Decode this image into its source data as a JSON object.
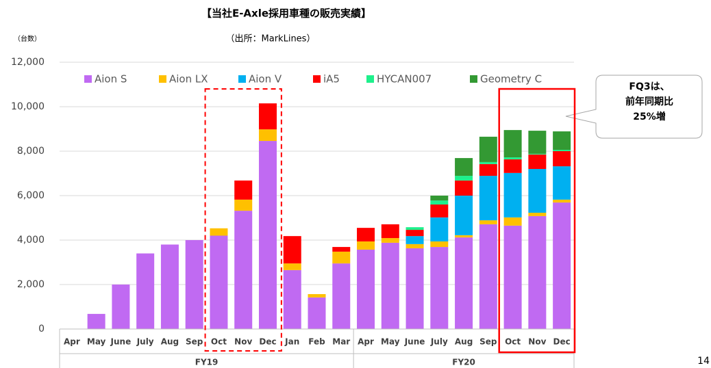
{
  "chart_data": {
    "type": "stacked_bar",
    "title": "【当社E-Axle採用車種の販売実績】",
    "subtitle": "（出所：MarkLines）",
    "y_label": "（台数）",
    "categories": [
      "Apr",
      "May",
      "June",
      "July",
      "Aug",
      "Sep",
      "Oct",
      "Nov",
      "Dec",
      "Jan",
      "Feb",
      "Mar",
      "Apr",
      "May",
      "June",
      "July",
      "Aug",
      "Sep",
      "Oct",
      "Nov",
      "Dec"
    ],
    "groups": [
      {
        "name": "FY19",
        "count": 12
      },
      {
        "name": "FY20",
        "count": 9
      }
    ],
    "series": [
      {
        "name": "Aion S",
        "color": "#c06af2",
        "values": [
          0,
          680,
          2000,
          3400,
          3800,
          4000,
          4200,
          5320,
          8460,
          2650,
          1420,
          2950,
          3570,
          3880,
          3630,
          3690,
          4120,
          4710,
          4650,
          5080,
          5690
        ]
      },
      {
        "name": "Aion LX",
        "color": "#ffc000",
        "values": [
          0,
          0,
          0,
          0,
          0,
          0,
          330,
          500,
          520,
          300,
          150,
          530,
          370,
          210,
          190,
          250,
          100,
          180,
          370,
          150,
          130
        ]
      },
      {
        "name": "Aion V",
        "color": "#00b0f0",
        "values": [
          0,
          0,
          0,
          0,
          0,
          0,
          0,
          0,
          0,
          0,
          0,
          0,
          0,
          0,
          360,
          1080,
          1780,
          2000,
          2000,
          1970,
          1500
        ]
      },
      {
        "name": "iA5",
        "color": "#ff0000",
        "values": [
          0,
          0,
          0,
          0,
          0,
          0,
          0,
          860,
          1170,
          1230,
          0,
          210,
          610,
          620,
          280,
          580,
          680,
          530,
          610,
          650,
          680
        ]
      },
      {
        "name": "HYCAN007",
        "color": "#1ef08c",
        "values": [
          0,
          0,
          0,
          0,
          0,
          0,
          0,
          0,
          0,
          0,
          0,
          0,
          0,
          0,
          120,
          180,
          210,
          90,
          90,
          30,
          60
        ]
      },
      {
        "name": "Geometry C",
        "color": "#339933",
        "values": [
          0,
          0,
          0,
          0,
          0,
          0,
          0,
          0,
          0,
          0,
          0,
          0,
          0,
          0,
          0,
          220,
          800,
          1140,
          1230,
          1040,
          830
        ]
      }
    ],
    "ylim": [
      0,
      12000
    ],
    "yticks": [
      0,
      {
        "value": 2000,
        "label": "2,000"
      },
      {
        "value": 4000,
        "label": "4,000"
      },
      {
        "value": 6000,
        "label": "6,000"
      },
      {
        "value": 8000,
        "label": "8,000"
      },
      {
        "value": 10000,
        "label": "10,000"
      },
      {
        "value": 12000,
        "label": "12,000"
      }
    ],
    "grid": true,
    "annotation": [
      "FQ3は、",
      "前年同期比",
      "25%増"
    ],
    "page_number": "14"
  }
}
